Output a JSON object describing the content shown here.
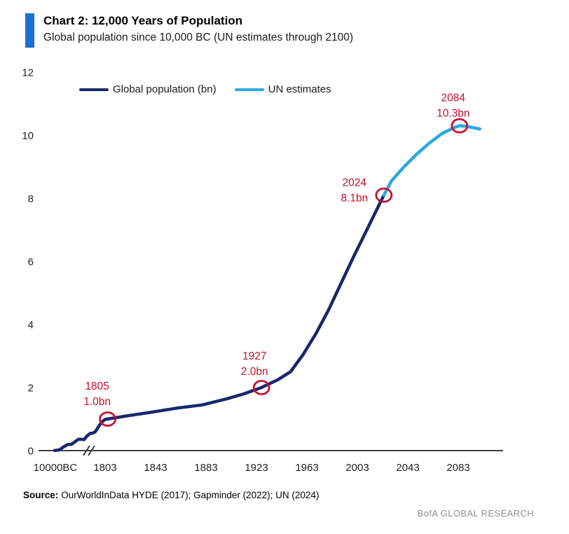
{
  "header": {
    "title": "Chart 2: 12,000 Years of Population",
    "subtitle": "Global population since 10,000 BC (UN estimates through 2100)"
  },
  "legend": {
    "items": [
      {
        "label": "Global population (bn)"
      },
      {
        "label": "UN estimates"
      }
    ]
  },
  "footer": {
    "source_label": "Source:",
    "source_text": "OurWorldInData HYDE (2017); Gapminder (2022); UN (2024)",
    "brand": "BofA GLOBAL RESEARCH"
  },
  "palette": {
    "navy": "#18286b",
    "light_blue": "#29a9e1",
    "annotation_red": "#c41230",
    "accent_bar_blue": "#1a6fd4",
    "axis_gray": "#3d3f42",
    "tick_text": "#222222",
    "brand_gray": "#8f9093"
  },
  "chart_data": {
    "type": "line",
    "title": "Chart 2: 12,000 Years of Population",
    "subtitle": "Global population since 10,000 BC (UN estimates through 2100)",
    "xlabel": "",
    "ylabel": "",
    "ylim": [
      0,
      12
    ],
    "y_ticks": [
      0,
      2,
      4,
      6,
      8,
      10,
      12
    ],
    "x_tick_labels": [
      "10000BC",
      "1803",
      "1843",
      "1883",
      "1923",
      "1963",
      "2003",
      "2043",
      "2083"
    ],
    "x_axis_break": "compressed scale between 10000BC and 1803 (break marks on axis)",
    "grid": false,
    "legend_position": "top-left",
    "series": [
      {
        "name": "Global population (bn)",
        "color": "#18286b",
        "points": [
          [
            -10000,
            0.004
          ],
          [
            -5000,
            0.019
          ],
          [
            -2000,
            0.07
          ],
          [
            -1000,
            0.11
          ],
          [
            -500,
            0.13
          ],
          [
            1,
            0.19
          ],
          [
            600,
            0.2
          ],
          [
            1000,
            0.28
          ],
          [
            1200,
            0.36
          ],
          [
            1300,
            0.36
          ],
          [
            1400,
            0.35
          ],
          [
            1500,
            0.46
          ],
          [
            1600,
            0.55
          ],
          [
            1650,
            0.55
          ],
          [
            1700,
            0.6
          ],
          [
            1750,
            0.77
          ],
          [
            1780,
            0.9
          ],
          [
            1803,
            0.99
          ],
          [
            1820,
            1.1
          ],
          [
            1840,
            1.22
          ],
          [
            1860,
            1.35
          ],
          [
            1880,
            1.45
          ],
          [
            1900,
            1.65
          ],
          [
            1913,
            1.8
          ],
          [
            1927,
            2.0
          ],
          [
            1940,
            2.25
          ],
          [
            1950,
            2.5
          ],
          [
            1960,
            3.05
          ],
          [
            1970,
            3.7
          ],
          [
            1980,
            4.45
          ],
          [
            1990,
            5.3
          ],
          [
            2000,
            6.15
          ],
          [
            2010,
            6.96
          ],
          [
            2024,
            8.1
          ]
        ]
      },
      {
        "name": "UN estimates",
        "color": "#29a9e1",
        "points": [
          [
            2024,
            8.1
          ],
          [
            2030,
            8.55
          ],
          [
            2040,
            9.0
          ],
          [
            2050,
            9.4
          ],
          [
            2060,
            9.75
          ],
          [
            2070,
            10.05
          ],
          [
            2080,
            10.25
          ],
          [
            2084,
            10.3
          ],
          [
            2090,
            10.28
          ],
          [
            2100,
            10.2
          ]
        ]
      }
    ],
    "annotations": [
      {
        "year": 1805,
        "value": 1.0,
        "label_line1": "1805",
        "label_line2": "1.0bn"
      },
      {
        "year": 1927,
        "value": 2.0,
        "label_line1": "1927",
        "label_line2": "2.0bn"
      },
      {
        "year": 2024,
        "value": 8.1,
        "label_line1": "2024",
        "label_line2": "8.1bn"
      },
      {
        "year": 2084,
        "value": 10.3,
        "label_line1": "2084",
        "label_line2": "10.3bn"
      }
    ]
  }
}
